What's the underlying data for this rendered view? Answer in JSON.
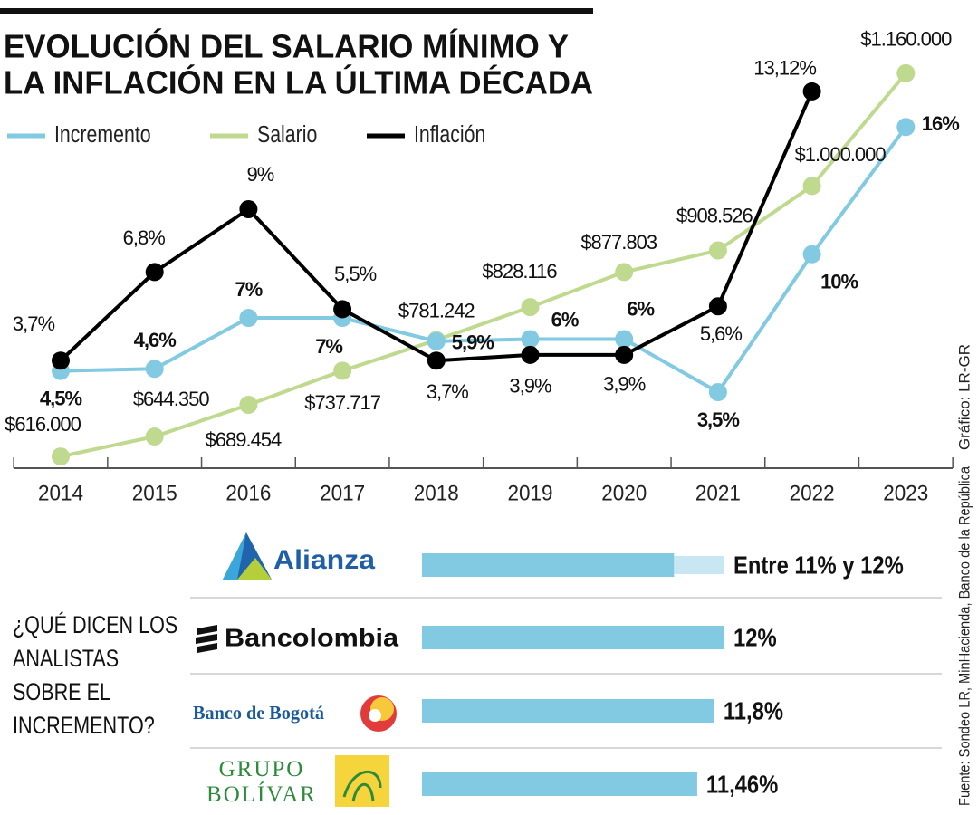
{
  "chart_data": [
    {
      "type": "line",
      "title": [
        "EVOLUCIÓN DEL SALARIO MÍNIMO Y",
        "LA INFLACIÓN EN LA ÚLTIMA DÉCADA"
      ],
      "categories": [
        "2014",
        "2015",
        "2016",
        "2017",
        "2018",
        "2019",
        "2020",
        "2021",
        "2022",
        "2023"
      ],
      "series": [
        {
          "name": "Incremento",
          "color": "#82c9e2",
          "values": [
            4.5,
            4.6,
            7,
            7,
            5.9,
            6,
            6,
            3.5,
            10,
            16
          ],
          "value_labels": [
            "4,5%",
            "4,6%",
            "7%",
            "7%",
            "5,9%",
            "6%",
            "6%",
            "3,5%",
            "10%",
            "16%"
          ]
        },
        {
          "name": "Salario",
          "color": "#bfd98f",
          "axis": "y2",
          "values": [
            616000,
            644350,
            689454,
            737717,
            781242,
            828116,
            877803,
            908526,
            1000000,
            1160000
          ],
          "value_labels": [
            "$616.000",
            "$644.350",
            "$689.454",
            "$737.717",
            "$781.242",
            "$828.116",
            "$877.803",
            "$908.526",
            "$1.000.000",
            "$1.160.000"
          ]
        },
        {
          "name": "Inflación",
          "color": "#000000",
          "axis": "y3",
          "values": [
            3.7,
            6.8,
            9,
            5.5,
            3.7,
            3.9,
            3.9,
            5.6,
            13.12,
            null
          ],
          "value_labels": [
            "3,7%",
            "6,8%",
            "9%",
            "5,5%",
            "3,7%",
            "3,9%",
            "3,9%",
            "5,6%",
            "13,12%",
            null
          ]
        }
      ],
      "ylim": [
        0,
        19
      ],
      "y2lim": [
        602000,
        1174000
      ],
      "y3lim": [
        0,
        14.1
      ]
    },
    {
      "type": "hbar",
      "title": [
        "¿QUÉ DICEN LOS",
        "ANALISTAS",
        "SOBRE EL",
        "INCREMENTO?"
      ],
      "categories": [
        "Alianza",
        "Bancolombia",
        "Banco de Bogotá",
        "GRUPO BOLÍVAR"
      ],
      "values": [
        11,
        12,
        11.8,
        11.46
      ],
      "range_high": [
        12,
        null,
        null,
        null
      ],
      "value_labels": [
        "Entre 11% y 12%",
        "12%",
        "11,8%",
        "11,46%"
      ],
      "color": "#82c9e2",
      "range_color": "#c8e7f2",
      "xlim": [
        6,
        12
      ]
    }
  ],
  "credit": "Gráfico: LR-GR",
  "source": "Fuente: Sondeo LR, MinHacienda, Banco de la República"
}
